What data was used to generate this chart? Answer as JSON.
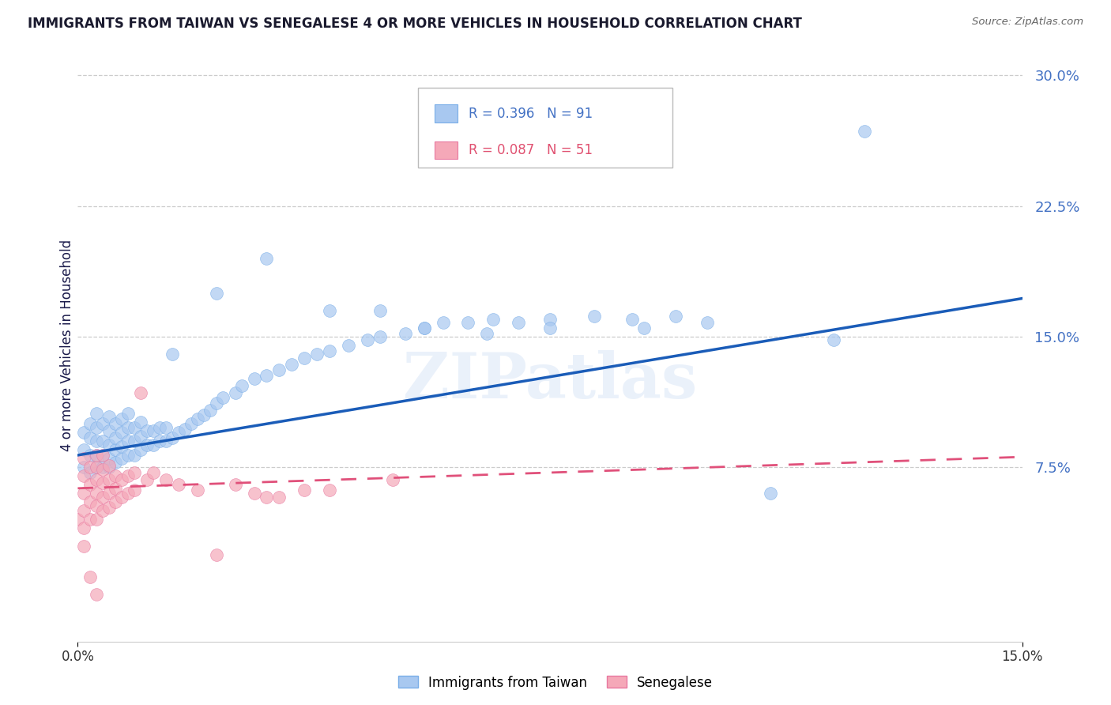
{
  "title": "IMMIGRANTS FROM TAIWAN VS SENEGALESE 4 OR MORE VEHICLES IN HOUSEHOLD CORRELATION CHART",
  "source": "Source: ZipAtlas.com",
  "ylabel": "4 or more Vehicles in Household",
  "ytick_labels": [
    "30.0%",
    "22.5%",
    "15.0%",
    "7.5%"
  ],
  "ytick_values": [
    0.3,
    0.225,
    0.15,
    0.075
  ],
  "xlim": [
    0.0,
    0.15
  ],
  "ylim": [
    -0.025,
    0.315
  ],
  "taiwan_color": "#a8c8f0",
  "taiwan_edge_color": "#7aaee8",
  "senegal_color": "#f5a8b8",
  "senegal_edge_color": "#e878a0",
  "taiwan_line_color": "#1a5cb8",
  "senegal_line_color": "#e0507a",
  "watermark": "ZIPatlas",
  "background_color": "#ffffff",
  "grid_color": "#cccccc",
  "taiwan_R": 0.396,
  "senegal_R": 0.087,
  "taiwan_N": 91,
  "senegal_N": 51,
  "taiwan_line_intercept": 0.082,
  "taiwan_line_slope": 0.6,
  "senegal_line_intercept": 0.063,
  "senegal_line_slope": 0.12,
  "taiwan_x": [
    0.001,
    0.001,
    0.001,
    0.002,
    0.002,
    0.002,
    0.002,
    0.003,
    0.003,
    0.003,
    0.003,
    0.003,
    0.004,
    0.004,
    0.004,
    0.004,
    0.005,
    0.005,
    0.005,
    0.005,
    0.005,
    0.006,
    0.006,
    0.006,
    0.006,
    0.007,
    0.007,
    0.007,
    0.007,
    0.008,
    0.008,
    0.008,
    0.008,
    0.009,
    0.009,
    0.009,
    0.01,
    0.01,
    0.01,
    0.011,
    0.011,
    0.012,
    0.012,
    0.013,
    0.013,
    0.014,
    0.014,
    0.015,
    0.016,
    0.017,
    0.018,
    0.019,
    0.02,
    0.021,
    0.022,
    0.023,
    0.025,
    0.026,
    0.028,
    0.03,
    0.032,
    0.034,
    0.036,
    0.038,
    0.04,
    0.043,
    0.046,
    0.048,
    0.052,
    0.055,
    0.058,
    0.062,
    0.066,
    0.07,
    0.075,
    0.082,
    0.088,
    0.095,
    0.1,
    0.11,
    0.015,
    0.022,
    0.03,
    0.04,
    0.048,
    0.055,
    0.065,
    0.075,
    0.09,
    0.12,
    0.125
  ],
  "taiwan_y": [
    0.075,
    0.085,
    0.095,
    0.072,
    0.082,
    0.092,
    0.1,
    0.075,
    0.082,
    0.09,
    0.098,
    0.106,
    0.075,
    0.082,
    0.09,
    0.1,
    0.075,
    0.08,
    0.088,
    0.096,
    0.104,
    0.078,
    0.085,
    0.092,
    0.1,
    0.08,
    0.087,
    0.095,
    0.103,
    0.082,
    0.09,
    0.098,
    0.106,
    0.082,
    0.09,
    0.098,
    0.085,
    0.093,
    0.101,
    0.088,
    0.096,
    0.088,
    0.096,
    0.09,
    0.098,
    0.09,
    0.098,
    0.092,
    0.095,
    0.097,
    0.1,
    0.103,
    0.105,
    0.108,
    0.112,
    0.115,
    0.118,
    0.122,
    0.126,
    0.128,
    0.131,
    0.134,
    0.138,
    0.14,
    0.142,
    0.145,
    0.148,
    0.15,
    0.152,
    0.155,
    0.158,
    0.158,
    0.16,
    0.158,
    0.16,
    0.162,
    0.16,
    0.162,
    0.158,
    0.06,
    0.14,
    0.175,
    0.195,
    0.165,
    0.165,
    0.155,
    0.152,
    0.155,
    0.155,
    0.148,
    0.268
  ],
  "senegal_x": [
    0.0,
    0.001,
    0.001,
    0.001,
    0.001,
    0.001,
    0.002,
    0.002,
    0.002,
    0.002,
    0.003,
    0.003,
    0.003,
    0.003,
    0.003,
    0.003,
    0.004,
    0.004,
    0.004,
    0.004,
    0.004,
    0.005,
    0.005,
    0.005,
    0.005,
    0.006,
    0.006,
    0.006,
    0.007,
    0.007,
    0.008,
    0.008,
    0.009,
    0.009,
    0.01,
    0.011,
    0.012,
    0.014,
    0.016,
    0.019,
    0.022,
    0.025,
    0.028,
    0.03,
    0.032,
    0.036,
    0.04,
    0.05,
    0.001,
    0.002,
    0.003
  ],
  "senegal_y": [
    0.045,
    0.04,
    0.05,
    0.06,
    0.07,
    0.08,
    0.045,
    0.055,
    0.065,
    0.075,
    0.045,
    0.053,
    0.06,
    0.068,
    0.075,
    0.082,
    0.05,
    0.058,
    0.066,
    0.074,
    0.082,
    0.052,
    0.06,
    0.068,
    0.076,
    0.055,
    0.063,
    0.07,
    0.058,
    0.068,
    0.06,
    0.07,
    0.062,
    0.072,
    0.118,
    0.068,
    0.072,
    0.068,
    0.065,
    0.062,
    0.025,
    0.065,
    0.06,
    0.058,
    0.058,
    0.062,
    0.062,
    0.068,
    0.03,
    0.012,
    0.002
  ]
}
